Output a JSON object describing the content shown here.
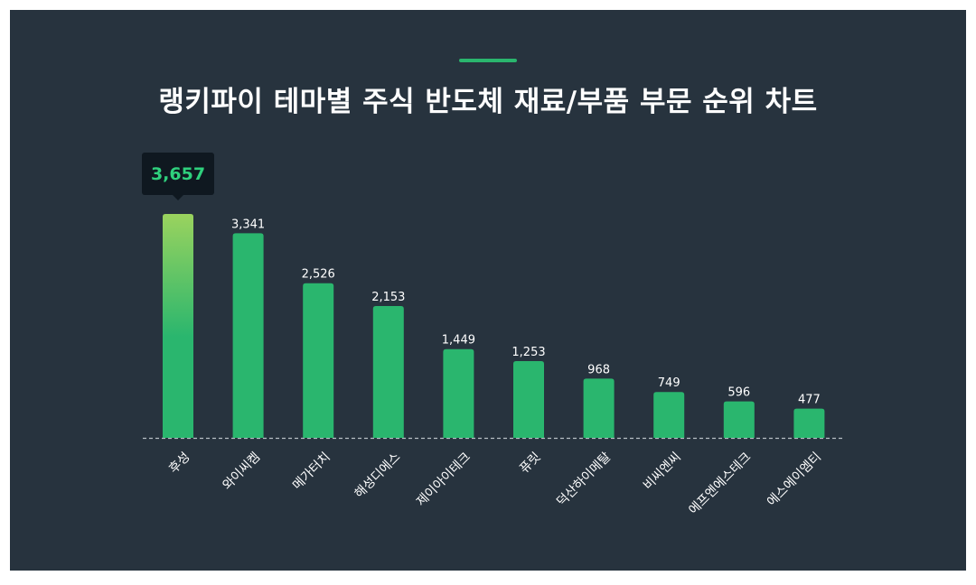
{
  "title": "랭키파이 테마별 주식 반도체 재료/부품 부문 순위 차트",
  "colors": {
    "background": "#27333e",
    "bar": "#2ab66e",
    "bar_highlight_top": "#9ad35e",
    "tooltip_bg": "#0f1820",
    "tooltip_text": "#2fd07d",
    "accent": "#2ab66e"
  },
  "chart_data": {
    "type": "bar",
    "title": "랭키파이 테마별 주식 반도체 재료/부품 부문 순위 차트",
    "xlabel": "",
    "ylabel": "",
    "ylim": [
      0,
      3657
    ],
    "grid": false,
    "legend": "none",
    "highlight_index": 0,
    "tooltip_value": "3,657",
    "categories": [
      "후성",
      "와이씨켐",
      "메가터치",
      "해성디에스",
      "제이아이테크",
      "퓨릿",
      "덕산하이메탈",
      "비씨엔씨",
      "에프엔에스테크",
      "에스에이엠티"
    ],
    "values": [
      3657,
      3341,
      2526,
      2153,
      1449,
      1253,
      968,
      749,
      596,
      477
    ],
    "value_labels": [
      "3,657",
      "3,341",
      "2,526",
      "2,153",
      "1,449",
      "1,253",
      "968",
      "749",
      "596",
      "477"
    ]
  }
}
